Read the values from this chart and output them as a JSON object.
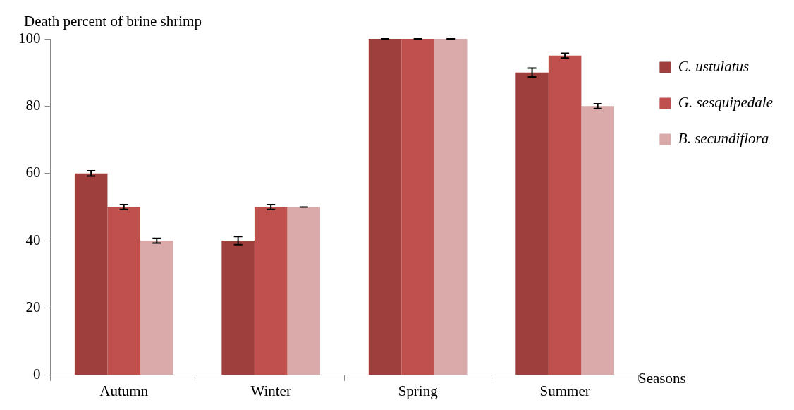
{
  "chart_data": {
    "type": "bar",
    "ylabel": "Death percent of brine shrimp",
    "xlabel": "Seasons",
    "categories": [
      "Autumn",
      "Winter",
      "Spring",
      "Summer"
    ],
    "series": [
      {
        "name": "C. ustulatus",
        "color": "#9e3f3d",
        "values": [
          60,
          40,
          100,
          90
        ],
        "errors": [
          0.8,
          1.2,
          0,
          1.3
        ]
      },
      {
        "name": "G. sesquipedale",
        "color": "#c0504d",
        "values": [
          50,
          50,
          100,
          95
        ],
        "errors": [
          0.7,
          0.7,
          0,
          0.7
        ]
      },
      {
        "name": "B. secundiflora",
        "color": "#d9aaa9",
        "values": [
          40,
          50,
          100,
          80
        ],
        "errors": [
          0.7,
          0,
          0,
          0.7
        ]
      }
    ],
    "ylim": [
      0,
      100
    ],
    "yticks": [
      0,
      20,
      40,
      60,
      80,
      100
    ],
    "grid": false,
    "legend": "top right"
  }
}
